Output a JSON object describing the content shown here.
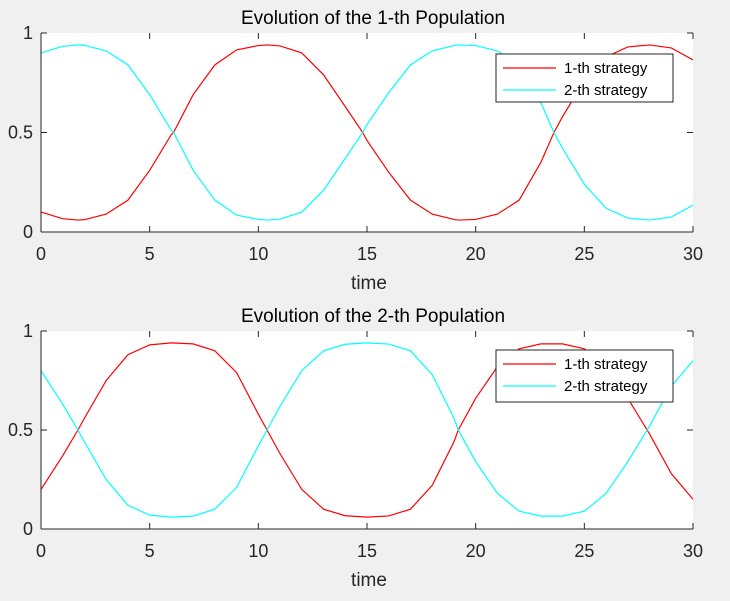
{
  "chart_data": [
    {
      "type": "line",
      "title": "Evolution of the 1-th Population",
      "xlabel": "time",
      "ylabel": "",
      "xlim": [
        0,
        30
      ],
      "ylim": [
        0,
        1
      ],
      "xticks": [
        0,
        5,
        10,
        15,
        20,
        25,
        30
      ],
      "xtick_labels": [
        "0",
        "5",
        "10",
        "15",
        "20",
        "25",
        "30"
      ],
      "yticks": [
        0,
        0.5,
        1
      ],
      "ytick_labels": [
        "0",
        "0.5",
        "1"
      ],
      "grid": false,
      "legend_position": "top-right",
      "x": [
        0,
        1,
        1.7,
        2,
        3,
        4,
        5,
        6,
        6.1,
        7,
        8,
        9,
        10,
        10.4,
        11,
        12,
        13,
        14,
        14.8,
        15,
        16,
        17,
        18,
        19,
        19.2,
        20,
        21,
        22,
        23,
        23.6,
        24,
        25,
        26,
        27,
        28,
        29,
        30
      ],
      "series": [
        {
          "name": "1-th strategy",
          "color": "#ff0000",
          "values": [
            0.1,
            0.067,
            0.06,
            0.062,
            0.09,
            0.16,
            0.31,
            0.49,
            0.5,
            0.69,
            0.84,
            0.915,
            0.937,
            0.94,
            0.935,
            0.9,
            0.79,
            0.63,
            0.5,
            0.46,
            0.3,
            0.16,
            0.09,
            0.063,
            0.06,
            0.063,
            0.09,
            0.16,
            0.35,
            0.5,
            0.58,
            0.76,
            0.88,
            0.93,
            0.94,
            0.925,
            0.865
          ]
        },
        {
          "name": "2-th strategy",
          "color": "#00ffff",
          "values": [
            0.9,
            0.933,
            0.94,
            0.938,
            0.91,
            0.84,
            0.69,
            0.51,
            0.5,
            0.31,
            0.16,
            0.085,
            0.063,
            0.06,
            0.065,
            0.1,
            0.21,
            0.37,
            0.5,
            0.54,
            0.7,
            0.84,
            0.91,
            0.937,
            0.94,
            0.937,
            0.91,
            0.84,
            0.65,
            0.5,
            0.42,
            0.24,
            0.12,
            0.07,
            0.06,
            0.075,
            0.135
          ]
        }
      ]
    },
    {
      "type": "line",
      "title": "Evolution of the 2-th Population",
      "xlabel": "time",
      "ylabel": "",
      "xlim": [
        0,
        30
      ],
      "ylim": [
        0,
        1
      ],
      "xticks": [
        0,
        5,
        10,
        15,
        20,
        25,
        30
      ],
      "xtick_labels": [
        "0",
        "5",
        "10",
        "15",
        "20",
        "25",
        "30"
      ],
      "yticks": [
        0,
        0.5,
        1
      ],
      "ytick_labels": [
        "0",
        "0.5",
        "1"
      ],
      "grid": false,
      "legend_position": "top-right",
      "x": [
        0,
        1,
        1.7,
        2,
        3,
        4,
        5,
        6,
        7,
        8,
        9,
        10,
        10.4,
        11,
        12,
        13,
        14,
        15,
        16,
        17,
        18,
        19,
        19.2,
        20,
        21,
        22,
        23,
        24,
        25,
        26,
        27,
        28,
        29,
        30
      ],
      "series": [
        {
          "name": "1-th strategy",
          "color": "#ff0000",
          "values": [
            0.2,
            0.37,
            0.5,
            0.56,
            0.75,
            0.88,
            0.93,
            0.94,
            0.935,
            0.9,
            0.79,
            0.58,
            0.5,
            0.38,
            0.2,
            0.1,
            0.067,
            0.06,
            0.066,
            0.1,
            0.22,
            0.44,
            0.5,
            0.66,
            0.82,
            0.91,
            0.935,
            0.935,
            0.91,
            0.82,
            0.66,
            0.48,
            0.28,
            0.15
          ]
        },
        {
          "name": "2-th strategy",
          "color": "#00ffff",
          "values": [
            0.8,
            0.63,
            0.5,
            0.44,
            0.25,
            0.12,
            0.07,
            0.06,
            0.065,
            0.1,
            0.21,
            0.42,
            0.5,
            0.62,
            0.8,
            0.9,
            0.933,
            0.94,
            0.934,
            0.9,
            0.78,
            0.56,
            0.5,
            0.34,
            0.18,
            0.09,
            0.065,
            0.065,
            0.09,
            0.18,
            0.34,
            0.52,
            0.72,
            0.85
          ]
        }
      ]
    }
  ]
}
